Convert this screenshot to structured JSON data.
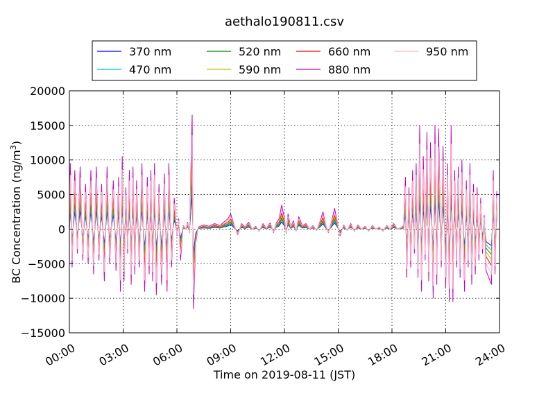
{
  "chart_data": {
    "type": "line",
    "title": "aethalo190811.csv",
    "xlabel": "Time on 2019-08-11 (JST)",
    "ylabel": "BC Concentration (ng/m",
    "ylabel_superscript": "3",
    "ylabel_suffix": ")",
    "xlim": [
      0,
      24
    ],
    "ylim": [
      -15000,
      20000
    ],
    "x_ticks": [
      0,
      3,
      6,
      9,
      12,
      15,
      18,
      21,
      24
    ],
    "x_tick_labels": [
      "00:00",
      "03:00",
      "06:00",
      "09:00",
      "12:00",
      "15:00",
      "18:00",
      "21:00",
      "24:00"
    ],
    "y_ticks": [
      -15000,
      -10000,
      -5000,
      0,
      5000,
      10000,
      15000,
      20000
    ],
    "y_tick_labels": [
      "−15000",
      "−10000",
      "−5000",
      "0",
      "5000",
      "10000",
      "15000",
      "20000"
    ],
    "grid": true,
    "legend_position": "top-center",
    "series": [
      {
        "name": "370 nm",
        "color": "#0000ff",
        "scale": 0.3
      },
      {
        "name": "470 nm",
        "color": "#00bfbf",
        "scale": 0.38
      },
      {
        "name": "520 nm",
        "color": "#008000",
        "scale": 0.46
      },
      {
        "name": "590 nm",
        "color": "#bfbf00",
        "scale": 0.55
      },
      {
        "name": "660 nm",
        "color": "#ff0000",
        "scale": 0.66
      },
      {
        "name": "880 nm",
        "color": "#bf00bf",
        "scale": 1.0
      },
      {
        "name": "950 nm",
        "color": "#ffb6c1",
        "scale": 0.82
      }
    ],
    "reference_series": "880 nm",
    "reference_points": [
      [
        0.0,
        0
      ],
      [
        0.05,
        9500
      ],
      [
        0.15,
        -5500
      ],
      [
        0.3,
        8500
      ],
      [
        0.45,
        -3500
      ],
      [
        0.6,
        9000
      ],
      [
        0.75,
        -4500
      ],
      [
        0.9,
        6500
      ],
      [
        1.05,
        -5000
      ],
      [
        1.2,
        8500
      ],
      [
        1.35,
        -6500
      ],
      [
        1.5,
        9000
      ],
      [
        1.65,
        -4500
      ],
      [
        1.8,
        6500
      ],
      [
        1.95,
        -7500
      ],
      [
        2.1,
        9000
      ],
      [
        2.25,
        -5000
      ],
      [
        2.45,
        7000
      ],
      [
        2.6,
        -6000
      ],
      [
        2.75,
        7500
      ],
      [
        2.85,
        -9000
      ],
      [
        2.95,
        10500
      ],
      [
        3.05,
        -7500
      ],
      [
        3.15,
        6000
      ],
      [
        3.25,
        -3500
      ],
      [
        3.35,
        8500
      ],
      [
        3.45,
        -8000
      ],
      [
        3.55,
        9000
      ],
      [
        3.65,
        -6500
      ],
      [
        3.75,
        7000
      ],
      [
        3.9,
        -5500
      ],
      [
        4.05,
        9500
      ],
      [
        4.2,
        -9000
      ],
      [
        4.35,
        7500
      ],
      [
        4.45,
        -6500
      ],
      [
        4.55,
        8500
      ],
      [
        4.65,
        -7500
      ],
      [
        4.75,
        9500
      ],
      [
        4.85,
        -9500
      ],
      [
        5.0,
        6500
      ],
      [
        5.15,
        -8000
      ],
      [
        5.3,
        8000
      ],
      [
        5.45,
        -9000
      ],
      [
        5.55,
        9500
      ],
      [
        5.7,
        -5500
      ],
      [
        5.85,
        4500
      ],
      [
        6.0,
        -1000
      ],
      [
        6.1,
        1500
      ],
      [
        6.2,
        -4500
      ],
      [
        6.35,
        500
      ],
      [
        6.5,
        0
      ],
      [
        6.6,
        1000
      ],
      [
        6.7,
        -500
      ],
      [
        6.85,
        16500
      ],
      [
        6.92,
        -11500
      ],
      [
        7.05,
        -2000
      ],
      [
        7.2,
        300
      ],
      [
        7.5,
        600
      ],
      [
        7.8,
        400
      ],
      [
        8.1,
        800
      ],
      [
        8.4,
        500
      ],
      [
        8.7,
        1200
      ],
      [
        8.85,
        1500
      ],
      [
        9.0,
        2200
      ],
      [
        9.2,
        500
      ],
      [
        9.4,
        -800
      ],
      [
        9.6,
        800
      ],
      [
        9.8,
        300
      ],
      [
        10.0,
        1000
      ],
      [
        10.2,
        0
      ],
      [
        10.4,
        400
      ],
      [
        10.6,
        -300
      ],
      [
        10.8,
        800
      ],
      [
        11.0,
        100
      ],
      [
        11.2,
        900
      ],
      [
        11.4,
        -500
      ],
      [
        11.55,
        900
      ],
      [
        11.7,
        1500
      ],
      [
        11.85,
        3500
      ],
      [
        12.0,
        1500
      ],
      [
        12.1,
        -600
      ],
      [
        12.2,
        2200
      ],
      [
        12.35,
        300
      ],
      [
        12.5,
        1200
      ],
      [
        12.65,
        -300
      ],
      [
        12.8,
        1800
      ],
      [
        13.0,
        500
      ],
      [
        13.2,
        800
      ],
      [
        13.4,
        0
      ],
      [
        13.6,
        500
      ],
      [
        13.8,
        -200
      ],
      [
        14.0,
        1200
      ],
      [
        14.15,
        2500
      ],
      [
        14.3,
        600
      ],
      [
        14.45,
        -500
      ],
      [
        14.6,
        800
      ],
      [
        14.8,
        3000
      ],
      [
        14.95,
        1000
      ],
      [
        15.1,
        -1000
      ],
      [
        15.3,
        600
      ],
      [
        15.5,
        -200
      ],
      [
        15.7,
        800
      ],
      [
        15.9,
        -300
      ],
      [
        16.1,
        600
      ],
      [
        16.3,
        0
      ],
      [
        16.5,
        400
      ],
      [
        16.7,
        -300
      ],
      [
        16.9,
        500
      ],
      [
        17.1,
        0
      ],
      [
        17.3,
        300
      ],
      [
        17.5,
        -300
      ],
      [
        17.7,
        500
      ],
      [
        17.9,
        0
      ],
      [
        18.1,
        800
      ],
      [
        18.3,
        0
      ],
      [
        18.5,
        200
      ],
      [
        18.65,
        500
      ],
      [
        18.75,
        7500
      ],
      [
        18.82,
        -7000
      ],
      [
        18.95,
        6000
      ],
      [
        19.05,
        -5500
      ],
      [
        19.15,
        8500
      ],
      [
        19.25,
        -3500
      ],
      [
        19.35,
        9500
      ],
      [
        19.45,
        -7000
      ],
      [
        19.55,
        15000
      ],
      [
        19.65,
        -9000
      ],
      [
        19.75,
        10500
      ],
      [
        19.85,
        -4500
      ],
      [
        19.95,
        14000
      ],
      [
        20.05,
        -7500
      ],
      [
        20.15,
        12500
      ],
      [
        20.3,
        -10000
      ],
      [
        20.4,
        15000
      ],
      [
        20.5,
        -8000
      ],
      [
        20.6,
        14500
      ],
      [
        20.75,
        -5500
      ],
      [
        20.85,
        12000
      ],
      [
        21.0,
        -8500
      ],
      [
        21.1,
        9500
      ],
      [
        21.2,
        -10500
      ],
      [
        21.3,
        15000
      ],
      [
        21.4,
        -10500
      ],
      [
        21.5,
        8500
      ],
      [
        21.6,
        -5500
      ],
      [
        21.7,
        9000
      ],
      [
        21.8,
        -7000
      ],
      [
        21.9,
        10000
      ],
      [
        22.05,
        -9000
      ],
      [
        22.15,
        7000
      ],
      [
        22.25,
        -5500
      ],
      [
        22.35,
        9500
      ],
      [
        22.45,
        -8000
      ],
      [
        22.55,
        6500
      ],
      [
        22.65,
        -6500
      ],
      [
        22.75,
        6000
      ],
      [
        22.85,
        -4500
      ],
      [
        22.95,
        4500
      ],
      [
        23.05,
        -3500
      ],
      [
        23.15,
        2000
      ],
      [
        23.25,
        -6000
      ],
      [
        23.55,
        -8000
      ],
      [
        23.65,
        8500
      ],
      [
        23.75,
        -6500
      ],
      [
        23.85,
        5500
      ]
    ]
  }
}
